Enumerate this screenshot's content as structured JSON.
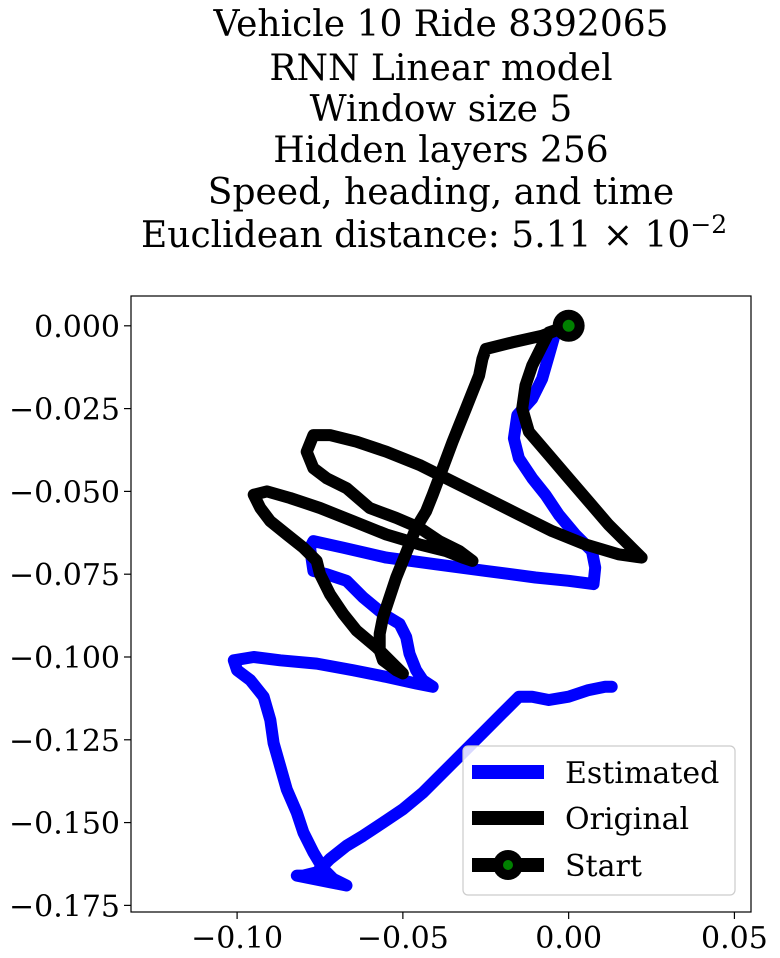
{
  "chart_data": {
    "type": "line",
    "title_lines": [
      "Vehicle 10 Ride 8392065",
      "RNN Linear model",
      "Window size 5",
      "Hidden layers 256",
      "Speed, heading, and time",
      "Euclidean distance: 5.11 × 10",
      "−2"
    ],
    "xlim": [
      -0.132,
      0.055
    ],
    "ylim": [
      -0.177,
      0.009
    ],
    "x_ticks": [
      -0.1,
      -0.05,
      0.0,
      0.05
    ],
    "x_tick_labels": [
      "−0.10",
      "−0.05",
      "0.00",
      "0.05"
    ],
    "y_ticks": [
      0.0,
      -0.025,
      -0.05,
      -0.075,
      -0.1,
      -0.125,
      -0.15,
      -0.175
    ],
    "y_tick_labels": [
      "0.000",
      "−0.025",
      "−0.050",
      "−0.075",
      "−0.100",
      "−0.125",
      "−0.150",
      "−0.175"
    ],
    "grid": false,
    "legend_position": "lower-right",
    "series": [
      {
        "name": "Estimated",
        "color": "#0000ff",
        "points": [
          [
            0.0,
            0.0
          ],
          [
            -0.004,
            -0.002
          ],
          [
            -0.006,
            -0.009
          ],
          [
            -0.008,
            -0.016
          ],
          [
            -0.011,
            -0.022
          ],
          [
            -0.0155,
            -0.027
          ],
          [
            -0.0165,
            -0.034
          ],
          [
            -0.015,
            -0.04
          ],
          [
            -0.011,
            -0.046
          ],
          [
            -0.007,
            -0.051
          ],
          [
            -0.003,
            -0.057
          ],
          [
            0.002,
            -0.063
          ],
          [
            0.007,
            -0.068
          ],
          [
            0.008,
            -0.073
          ],
          [
            0.0075,
            -0.078
          ],
          [
            0.0,
            -0.077
          ],
          [
            -0.01,
            -0.076
          ],
          [
            -0.025,
            -0.074
          ],
          [
            -0.04,
            -0.072
          ],
          [
            -0.055,
            -0.07
          ],
          [
            -0.068,
            -0.067
          ],
          [
            -0.077,
            -0.065
          ],
          [
            -0.078,
            -0.067
          ],
          [
            -0.077,
            -0.074
          ],
          [
            -0.073,
            -0.075
          ],
          [
            -0.067,
            -0.077
          ],
          [
            -0.062,
            -0.082
          ],
          [
            -0.056,
            -0.087
          ],
          [
            -0.051,
            -0.09
          ],
          [
            -0.049,
            -0.094
          ],
          [
            -0.048,
            -0.099
          ],
          [
            -0.046,
            -0.104
          ],
          [
            -0.044,
            -0.107
          ],
          [
            -0.041,
            -0.109
          ],
          [
            -0.046,
            -0.108
          ],
          [
            -0.055,
            -0.106
          ],
          [
            -0.065,
            -0.104
          ],
          [
            -0.076,
            -0.102
          ],
          [
            -0.087,
            -0.101
          ],
          [
            -0.095,
            -0.1
          ],
          [
            -0.101,
            -0.101
          ],
          [
            -0.1,
            -0.104
          ],
          [
            -0.096,
            -0.107
          ],
          [
            -0.092,
            -0.112
          ],
          [
            -0.09,
            -0.119
          ],
          [
            -0.089,
            -0.126
          ],
          [
            -0.087,
            -0.133
          ],
          [
            -0.085,
            -0.14
          ],
          [
            -0.082,
            -0.147
          ],
          [
            -0.08,
            -0.153
          ],
          [
            -0.077,
            -0.159
          ],
          [
            -0.074,
            -0.164
          ],
          [
            -0.071,
            -0.167
          ],
          [
            -0.067,
            -0.169
          ],
          [
            -0.072,
            -0.168
          ],
          [
            -0.082,
            -0.166
          ],
          [
            -0.08,
            -0.166
          ],
          [
            -0.076,
            -0.165
          ],
          [
            -0.072,
            -0.161
          ],
          [
            -0.067,
            -0.157
          ],
          [
            -0.062,
            -0.154
          ],
          [
            -0.056,
            -0.15
          ],
          [
            -0.05,
            -0.146
          ],
          [
            -0.044,
            -0.141
          ],
          [
            -0.038,
            -0.135
          ],
          [
            -0.032,
            -0.129
          ],
          [
            -0.026,
            -0.123
          ],
          [
            -0.02,
            -0.117
          ],
          [
            -0.015,
            -0.112
          ],
          [
            -0.011,
            -0.112
          ],
          [
            -0.006,
            -0.113
          ],
          [
            0.0,
            -0.112
          ],
          [
            0.006,
            -0.11
          ],
          [
            0.011,
            -0.109
          ],
          [
            0.013,
            -0.109
          ]
        ]
      },
      {
        "name": "Original",
        "color": "#000000",
        "points": [
          [
            0.0,
            0.0
          ],
          [
            -0.008,
            -0.003
          ],
          [
            -0.017,
            -0.005
          ],
          [
            -0.025,
            -0.007
          ],
          [
            -0.026,
            -0.01
          ],
          [
            -0.027,
            -0.015
          ],
          [
            -0.029,
            -0.02
          ],
          [
            -0.031,
            -0.025
          ],
          [
            -0.033,
            -0.03
          ],
          [
            -0.035,
            -0.035
          ],
          [
            -0.038,
            -0.043
          ],
          [
            -0.041,
            -0.051
          ],
          [
            -0.043,
            -0.056
          ],
          [
            -0.046,
            -0.061
          ],
          [
            -0.048,
            -0.066
          ],
          [
            -0.05,
            -0.071
          ],
          [
            -0.052,
            -0.076
          ],
          [
            -0.054,
            -0.082
          ],
          [
            -0.056,
            -0.088
          ],
          [
            -0.057,
            -0.093
          ],
          [
            -0.057,
            -0.098
          ],
          [
            -0.056,
            -0.101
          ],
          [
            -0.052,
            -0.104
          ],
          [
            -0.05,
            -0.105
          ],
          [
            -0.053,
            -0.102
          ],
          [
            -0.058,
            -0.097
          ],
          [
            -0.064,
            -0.092
          ],
          [
            -0.068,
            -0.087
          ],
          [
            -0.072,
            -0.081
          ],
          [
            -0.075,
            -0.075
          ],
          [
            -0.076,
            -0.071
          ],
          [
            -0.08,
            -0.067
          ],
          [
            -0.085,
            -0.063
          ],
          [
            -0.09,
            -0.059
          ],
          [
            -0.093,
            -0.055
          ],
          [
            -0.095,
            -0.051
          ],
          [
            -0.091,
            -0.05
          ],
          [
            -0.084,
            -0.052
          ],
          [
            -0.075,
            -0.055
          ],
          [
            -0.065,
            -0.059
          ],
          [
            -0.055,
            -0.063
          ],
          [
            -0.045,
            -0.066
          ],
          [
            -0.037,
            -0.068
          ],
          [
            -0.032,
            -0.07
          ],
          [
            -0.029,
            -0.071
          ],
          [
            -0.033,
            -0.068
          ],
          [
            -0.039,
            -0.065
          ],
          [
            -0.045,
            -0.061
          ],
          [
            -0.052,
            -0.058
          ],
          [
            -0.06,
            -0.055
          ],
          [
            -0.067,
            -0.049
          ],
          [
            -0.073,
            -0.046
          ],
          [
            -0.077,
            -0.043
          ],
          [
            -0.079,
            -0.038
          ],
          [
            -0.077,
            -0.033
          ],
          [
            -0.072,
            -0.033
          ],
          [
            -0.064,
            -0.035
          ],
          [
            -0.055,
            -0.038
          ],
          [
            -0.045,
            -0.042
          ],
          [
            -0.035,
            -0.047
          ],
          [
            -0.025,
            -0.052
          ],
          [
            -0.015,
            -0.057
          ],
          [
            -0.005,
            -0.062
          ],
          [
            0.005,
            -0.066
          ],
          [
            0.015,
            -0.069
          ],
          [
            0.022,
            -0.07
          ],
          [
            0.018,
            -0.066
          ],
          [
            0.012,
            -0.06
          ],
          [
            0.006,
            -0.053
          ],
          [
            0.0,
            -0.046
          ],
          [
            -0.006,
            -0.039
          ],
          [
            -0.012,
            -0.032
          ],
          [
            -0.014,
            -0.025
          ],
          [
            -0.013,
            -0.018
          ],
          [
            -0.011,
            -0.012
          ],
          [
            -0.008,
            -0.006
          ],
          [
            -0.006,
            -0.002
          ],
          [
            -0.003,
            -0.001
          ],
          [
            0.0,
            0.0
          ]
        ]
      }
    ],
    "start_point": {
      "name": "Start",
      "x": 0.0,
      "y": 0.0,
      "marker_color": "#000000",
      "inner_color": "#008000"
    },
    "legend": [
      {
        "label": "Estimated",
        "color": "#0000ff",
        "marker": false
      },
      {
        "label": "Original",
        "color": "#000000",
        "marker": false
      },
      {
        "label": "Start",
        "color": "#000000",
        "marker": true,
        "inner_color": "#008000"
      }
    ]
  }
}
